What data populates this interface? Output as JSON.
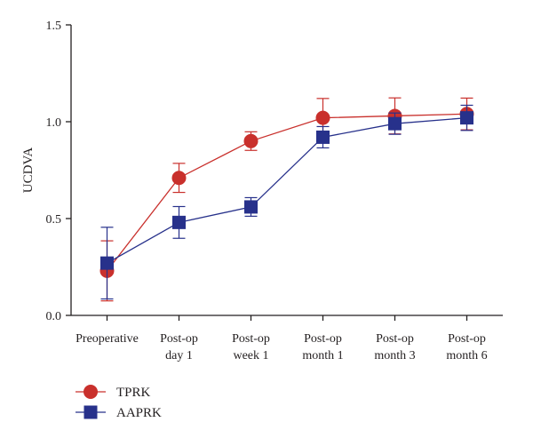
{
  "chart_data": {
    "type": "line",
    "title": "",
    "xlabel": "",
    "ylabel": "UCDVA",
    "ylim": [
      0.0,
      1.5
    ],
    "yticks": [
      "0.0",
      "0.5",
      "1.0",
      "1.5"
    ],
    "categories": [
      [
        "Preoperative"
      ],
      [
        "Post-op",
        "day 1"
      ],
      [
        "Post-op",
        "week 1"
      ],
      [
        "Post-op",
        "month 1"
      ],
      [
        "Post-op",
        "month 3"
      ],
      [
        "Post-op",
        "month 6"
      ]
    ],
    "legend_position": "bottom-left",
    "grid": false,
    "series": [
      {
        "name": "TPRK",
        "marker": "circle",
        "color": "#c9302c",
        "values": [
          0.23,
          0.71,
          0.9,
          1.02,
          1.03,
          1.04
        ],
        "error": [
          0.155,
          0.075,
          0.048,
          0.1,
          0.093,
          0.082
        ]
      },
      {
        "name": "AAPRK",
        "marker": "square",
        "color": "#27318b",
        "values": [
          0.27,
          0.48,
          0.56,
          0.92,
          0.99,
          1.02
        ],
        "error": [
          0.185,
          0.082,
          0.048,
          0.055,
          0.055,
          0.065
        ]
      }
    ]
  }
}
